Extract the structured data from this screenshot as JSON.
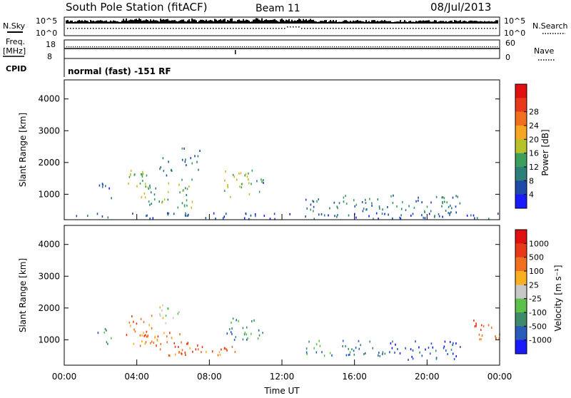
{
  "header": {
    "station": "South Pole Station (fitACF)",
    "beam": "Beam 11",
    "date": "08/Jul/2013"
  },
  "strips": {
    "nsky": {
      "label": "N.Sky",
      "ticks": [
        "10^5",
        "10^0"
      ]
    },
    "nsearch": {
      "label": "N.Search",
      "ticks": [
        "10^5",
        "10^0"
      ]
    },
    "freq": {
      "label_line1": "Freq.",
      "label_line2": "[MHz]",
      "ticks": [
        "18",
        "8"
      ]
    },
    "nave": {
      "label": "Nave",
      "ticks": [
        "60",
        "0"
      ]
    },
    "cpid": {
      "label": "CPID",
      "value": "normal (fast) -151 RF"
    }
  },
  "chart_data": [
    {
      "type": "heatmap",
      "name": "power",
      "ylabel": "Slant Range [km]",
      "xlabel": "",
      "ylim": [
        200,
        4600
      ],
      "yticks": [
        "1000",
        "2000",
        "3000",
        "4000"
      ],
      "colorbar": {
        "label": "Power [dB]",
        "ticks": [
          "4",
          "8",
          "12",
          "16",
          "20",
          "24",
          "28"
        ],
        "colors": [
          "#1a1aff",
          "#1f4aa8",
          "#2e7f7a",
          "#3c9f5c",
          "#b7c22a",
          "#f5a623",
          "#f07020",
          "#e83a1a",
          "#e01010"
        ]
      },
      "clusters": [
        {
          "t0": 1.8,
          "t1": 2.6,
          "r0": 900,
          "r1": 1400,
          "level": 1
        },
        {
          "t0": 3.4,
          "t1": 4.6,
          "r0": 900,
          "r1": 1800,
          "level": 4
        },
        {
          "t0": 4.2,
          "t1": 5.8,
          "r0": 700,
          "r1": 1500,
          "level": 3
        },
        {
          "t0": 5.2,
          "t1": 6.0,
          "r0": 1500,
          "r1": 2200,
          "level": 2
        },
        {
          "t0": 6.0,
          "t1": 7.2,
          "r0": 600,
          "r1": 1500,
          "level": 3
        },
        {
          "t0": 6.4,
          "t1": 7.5,
          "r0": 1800,
          "r1": 2500,
          "level": 2
        },
        {
          "t0": 8.8,
          "t1": 10.4,
          "r0": 900,
          "r1": 1800,
          "level": 4
        },
        {
          "t0": 10.2,
          "t1": 11.0,
          "r0": 1000,
          "r1": 1500,
          "level": 2
        },
        {
          "t0": 13.2,
          "t1": 17.0,
          "r0": 500,
          "r1": 1000,
          "level": 2
        },
        {
          "t0": 17.2,
          "t1": 21.8,
          "r0": 400,
          "r1": 1000,
          "level": 2
        },
        {
          "t0": 0.2,
          "t1": 24.0,
          "r0": 250,
          "r1": 450,
          "level": 1
        }
      ]
    },
    {
      "type": "heatmap",
      "name": "velocity",
      "ylabel": "Slant Range [km]",
      "xlabel": "Time UT",
      "ylim": [
        200,
        4600
      ],
      "yticks": [
        "1000",
        "2000",
        "3000",
        "4000"
      ],
      "xticks": [
        "00:00",
        "04:00",
        "08:00",
        "12:00",
        "16:00",
        "20:00",
        "00:00"
      ],
      "colorbar": {
        "label": "Velocity [m s⁻¹]",
        "ticks": [
          "1000",
          "500",
          "100",
          "25",
          "-25",
          "-100",
          "-500",
          "-1000"
        ],
        "colors": [
          "#1a1aff",
          "#2a5bb8",
          "#3f8a6a",
          "#5cc04a",
          "#c8c8c8",
          "#f8b020",
          "#f07020",
          "#e83a1a",
          "#e01010"
        ]
      },
      "clusters": [
        {
          "t0": 1.8,
          "t1": 2.6,
          "r0": 900,
          "r1": 1400,
          "level": 2
        },
        {
          "t0": 3.4,
          "t1": 5.0,
          "r0": 700,
          "r1": 1800,
          "level": 6
        },
        {
          "t0": 4.5,
          "t1": 6.5,
          "r0": 500,
          "r1": 1300,
          "level": 6
        },
        {
          "t0": 5.2,
          "t1": 6.3,
          "r0": 1500,
          "r1": 2200,
          "level": 4
        },
        {
          "t0": 6.4,
          "t1": 9.5,
          "r0": 500,
          "r1": 1000,
          "level": 6
        },
        {
          "t0": 8.8,
          "t1": 11.0,
          "r0": 1000,
          "r1": 1700,
          "level": 2
        },
        {
          "t0": 13.2,
          "t1": 17.0,
          "r0": 500,
          "r1": 1000,
          "level": 2
        },
        {
          "t0": 17.2,
          "t1": 21.8,
          "r0": 400,
          "r1": 1000,
          "level": 1
        },
        {
          "t0": 22.5,
          "t1": 24.0,
          "r0": 1000,
          "r1": 1700,
          "level": 6
        }
      ]
    }
  ]
}
